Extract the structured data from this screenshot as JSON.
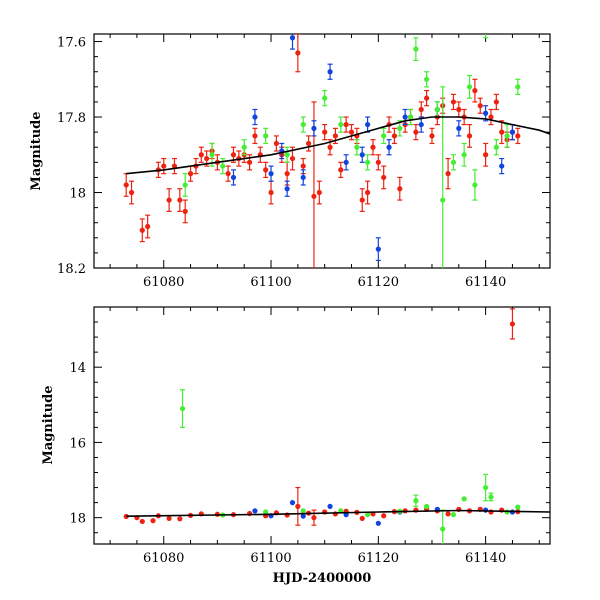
{
  "chart_data": [
    {
      "type": "scatter",
      "panel": "top",
      "xlabel": "",
      "ylabel": "Magnitude",
      "xlim": [
        61067,
        61152
      ],
      "ylim": [
        18.2,
        17.58
      ],
      "y_inverted": true,
      "x_ticks": [
        61080,
        61100,
        61120,
        61140
      ],
      "x_tick_labels": [
        "61080",
        "61100",
        "61120",
        "61140"
      ],
      "y_ticks": [
        17.6,
        17.8,
        18.0,
        18.2
      ],
      "y_tick_labels": [
        "17.6",
        "17.8",
        "18",
        "18.2"
      ],
      "fit_curve": {
        "x": [
          61073,
          61080,
          61090,
          61100,
          61110,
          61120,
          61125,
          61130,
          61135,
          61140,
          61145,
          61150,
          61152
        ],
        "y": [
          17.95,
          17.94,
          17.92,
          17.9,
          17.87,
          17.83,
          17.81,
          17.8,
          17.8,
          17.805,
          17.82,
          17.835,
          17.845
        ]
      },
      "series": [
        {
          "name": "red",
          "color": "#ee2211",
          "points": [
            [
              61073,
              17.98,
              0.03
            ],
            [
              61074,
              18.0,
              0.03
            ],
            [
              61076,
              18.1,
              0.03
            ],
            [
              61077,
              18.09,
              0.03
            ],
            [
              61079,
              17.94,
              0.02
            ],
            [
              61080,
              17.93,
              0.02
            ],
            [
              61081,
              18.02,
              0.03
            ],
            [
              61082,
              17.93,
              0.02
            ],
            [
              61083,
              18.02,
              0.03
            ],
            [
              61084,
              18.05,
              0.03
            ],
            [
              61085,
              17.95,
              0.02
            ],
            [
              61086,
              17.93,
              0.02
            ],
            [
              61087,
              17.9,
              0.02
            ],
            [
              61088,
              17.91,
              0.02
            ],
            [
              61089,
              17.89,
              0.02
            ],
            [
              61090,
              17.92,
              0.02
            ],
            [
              61092,
              17.95,
              0.02
            ],
            [
              61093,
              17.9,
              0.02
            ],
            [
              61094,
              17.91,
              0.02
            ],
            [
              61095,
              17.9,
              0.02
            ],
            [
              61096,
              17.92,
              0.02
            ],
            [
              61097,
              17.85,
              0.02
            ],
            [
              61098,
              17.9,
              0.02
            ],
            [
              61099,
              17.94,
              0.02
            ],
            [
              61100,
              18.0,
              0.03
            ],
            [
              61101,
              17.87,
              0.02
            ],
            [
              61102,
              17.9,
              0.02
            ],
            [
              61103,
              17.95,
              0.03
            ],
            [
              61104,
              17.91,
              0.03
            ],
            [
              61105,
              17.63,
              0.05
            ],
            [
              61106,
              17.93,
              0.02
            ],
            [
              61107,
              17.87,
              0.02
            ],
            [
              61108,
              18.01,
              0.25
            ],
            [
              61109,
              18.0,
              0.03
            ],
            [
              61110,
              17.84,
              0.02
            ],
            [
              61111,
              17.88,
              0.02
            ],
            [
              61112,
              17.85,
              0.02
            ],
            [
              61113,
              17.94,
              0.02
            ],
            [
              61114,
              17.82,
              0.02
            ],
            [
              61115,
              17.84,
              0.02
            ],
            [
              61116,
              17.85,
              0.02
            ],
            [
              61117,
              18.02,
              0.03
            ],
            [
              61118,
              18.0,
              0.03
            ],
            [
              61119,
              17.88,
              0.02
            ],
            [
              61120,
              17.92,
              0.02
            ],
            [
              61121,
              17.96,
              0.03
            ],
            [
              61122,
              17.82,
              0.02
            ],
            [
              61123,
              17.85,
              0.02
            ],
            [
              61124,
              17.99,
              0.03
            ],
            [
              61125,
              17.82,
              0.02
            ],
            [
              61126,
              17.8,
              0.02
            ],
            [
              61127,
              17.84,
              0.02
            ],
            [
              61128,
              17.78,
              0.02
            ],
            [
              61129,
              17.75,
              0.02
            ],
            [
              61130,
              17.85,
              0.02
            ],
            [
              61131,
              17.8,
              0.02
            ],
            [
              61132,
              17.77,
              0.02
            ],
            [
              61133,
              17.95,
              0.04
            ],
            [
              61134,
              17.76,
              0.02
            ],
            [
              61135,
              17.78,
              0.02
            ],
            [
              61136,
              17.8,
              0.02
            ],
            [
              61137,
              17.85,
              0.03
            ],
            [
              61138,
              17.73,
              0.03
            ],
            [
              61139,
              17.77,
              0.02
            ],
            [
              61140,
              17.9,
              0.03
            ],
            [
              61141,
              17.8,
              0.02
            ],
            [
              61142,
              17.76,
              0.02
            ],
            [
              61143,
              17.84,
              0.03
            ],
            [
              61144,
              17.86,
              0.02
            ],
            [
              61145,
              17.84,
              0.02
            ],
            [
              61146,
              17.85,
              0.02
            ]
          ]
        },
        {
          "name": "blue",
          "color": "#1144dd",
          "points": [
            [
              61093,
              17.96,
              0.02
            ],
            [
              61097,
              17.8,
              0.02
            ],
            [
              61100,
              17.95,
              0.02
            ],
            [
              61102,
              17.89,
              0.02
            ],
            [
              61103,
              17.99,
              0.02
            ],
            [
              61104,
              17.59,
              0.03
            ],
            [
              61106,
              17.96,
              0.02
            ],
            [
              61108,
              17.83,
              0.02
            ],
            [
              61111,
              17.68,
              0.02
            ],
            [
              61114,
              17.92,
              0.02
            ],
            [
              61117,
              17.9,
              0.02
            ],
            [
              61118,
              17.82,
              0.02
            ],
            [
              61120,
              18.15,
              0.03
            ],
            [
              61122,
              17.88,
              0.02
            ],
            [
              61125,
              17.8,
              0.02
            ],
            [
              61128,
              17.82,
              0.02
            ],
            [
              61131,
              17.78,
              0.02
            ],
            [
              61135,
              17.83,
              0.02
            ],
            [
              61140,
              17.79,
              0.02
            ],
            [
              61143,
              17.93,
              0.02
            ],
            [
              61145,
              17.84,
              0.02
            ]
          ]
        },
        {
          "name": "green",
          "color": "#44ee33",
          "points": [
            [
              61084,
              17.98,
              0.03
            ],
            [
              61089,
              17.9,
              0.03
            ],
            [
              61091,
              17.93,
              0.02
            ],
            [
              61095,
              17.88,
              0.02
            ],
            [
              61099,
              17.85,
              0.02
            ],
            [
              61103,
              17.9,
              0.02
            ],
            [
              61106,
              17.82,
              0.02
            ],
            [
              61110,
              17.75,
              0.02
            ],
            [
              61113,
              17.82,
              0.02
            ],
            [
              61116,
              17.88,
              0.02
            ],
            [
              61118,
              17.92,
              0.02
            ],
            [
              61121,
              17.85,
              0.02
            ],
            [
              61124,
              17.83,
              0.02
            ],
            [
              61126,
              17.8,
              0.02
            ],
            [
              61127,
              17.62,
              0.03
            ],
            [
              61129,
              17.7,
              0.02
            ],
            [
              61131,
              17.78,
              0.02
            ],
            [
              61132,
              18.02,
              0.3
            ],
            [
              61134,
              17.92,
              0.02
            ],
            [
              61136,
              17.9,
              0.03
            ],
            [
              61137,
              17.72,
              0.03
            ],
            [
              61138,
              17.98,
              0.04
            ],
            [
              61140,
              17.56,
              0.03
            ],
            [
              61142,
              17.88,
              0.02
            ],
            [
              61144,
              17.85,
              0.03
            ],
            [
              61146,
              17.72,
              0.02
            ]
          ]
        }
      ]
    },
    {
      "type": "scatter",
      "panel": "bottom",
      "xlabel": "HJD-2400000",
      "ylabel": "Magnitude",
      "xlim": [
        61067,
        61152
      ],
      "ylim": [
        18.7,
        12.4
      ],
      "y_inverted": true,
      "x_ticks": [
        61080,
        61100,
        61120,
        61140
      ],
      "x_tick_labels": [
        "61080",
        "61100",
        "61120",
        "61140"
      ],
      "y_ticks": [
        14,
        16,
        18
      ],
      "y_tick_labels": [
        "14",
        "16",
        "18"
      ],
      "fit_curve": {
        "x": [
          61073,
          61100,
          61120,
          61135,
          61152
        ],
        "y": [
          17.96,
          17.91,
          17.85,
          17.81,
          17.85
        ]
      },
      "series": [
        {
          "name": "red",
          "color": "#ee2211",
          "points": [
            [
              61073,
              17.97,
              0
            ],
            [
              61075,
              18.0,
              0
            ],
            [
              61076,
              18.1,
              0
            ],
            [
              61078,
              18.08,
              0
            ],
            [
              61079,
              17.95,
              0
            ],
            [
              61081,
              18.02,
              0
            ],
            [
              61083,
              18.03,
              0
            ],
            [
              61085,
              17.94,
              0
            ],
            [
              61087,
              17.9,
              0
            ],
            [
              61090,
              17.91,
              0
            ],
            [
              61093,
              17.92,
              0
            ],
            [
              61096,
              17.89,
              0
            ],
            [
              61099,
              17.95,
              0
            ],
            [
              61101,
              17.87,
              0
            ],
            [
              61103,
              17.93,
              0
            ],
            [
              61105,
              17.7,
              0.5
            ],
            [
              61107,
              17.88,
              0
            ],
            [
              61108,
              18.0,
              0.2
            ],
            [
              61110,
              17.85,
              0
            ],
            [
              61112,
              17.9,
              0
            ],
            [
              61114,
              17.83,
              0
            ],
            [
              61116,
              17.86,
              0
            ],
            [
              61117,
              18.02,
              0
            ],
            [
              61119,
              17.9,
              0
            ],
            [
              61121,
              17.95,
              0
            ],
            [
              61123,
              17.84,
              0
            ],
            [
              61125,
              17.82,
              0
            ],
            [
              61127,
              17.8,
              0
            ],
            [
              61129,
              17.78,
              0
            ],
            [
              61131,
              17.82,
              0
            ],
            [
              61133,
              17.9,
              0
            ],
            [
              61135,
              17.78,
              0
            ],
            [
              61137,
              17.82,
              0
            ],
            [
              61139,
              17.78,
              0
            ],
            [
              61141,
              17.85,
              0
            ],
            [
              61143,
              17.8,
              0
            ],
            [
              61145,
              12.85,
              0.4
            ],
            [
              61146,
              17.84,
              0
            ]
          ]
        },
        {
          "name": "blue",
          "color": "#1144dd",
          "points": [
            [
              61097,
              17.82,
              0
            ],
            [
              61100,
              17.95,
              0
            ],
            [
              61104,
              17.6,
              0
            ],
            [
              61106,
              17.96,
              0
            ],
            [
              61111,
              17.7,
              0
            ],
            [
              61114,
              17.92,
              0
            ],
            [
              61120,
              18.15,
              0
            ],
            [
              61124,
              17.85,
              0
            ],
            [
              61131,
              17.78,
              0
            ],
            [
              61140,
              17.8,
              0
            ],
            [
              61145,
              17.85,
              0
            ]
          ]
        },
        {
          "name": "green",
          "color": "#44ee33",
          "points": [
            [
              61083.5,
              15.1,
              0.5
            ],
            [
              61091,
              17.93,
              0
            ],
            [
              61099,
              17.85,
              0
            ],
            [
              61106,
              17.82,
              0
            ],
            [
              61113,
              17.82,
              0
            ],
            [
              61118,
              17.92,
              0
            ],
            [
              61124,
              17.83,
              0
            ],
            [
              61127,
              17.55,
              0.15
            ],
            [
              61129,
              17.7,
              0
            ],
            [
              61132,
              18.3,
              0.5
            ],
            [
              61134,
              17.92,
              0
            ],
            [
              61136,
              17.5,
              0
            ],
            [
              61140,
              17.2,
              0.35
            ],
            [
              61141,
              17.45,
              0.1
            ],
            [
              61144,
              17.85,
              0
            ],
            [
              61146,
              17.72,
              0
            ]
          ]
        }
      ]
    }
  ]
}
